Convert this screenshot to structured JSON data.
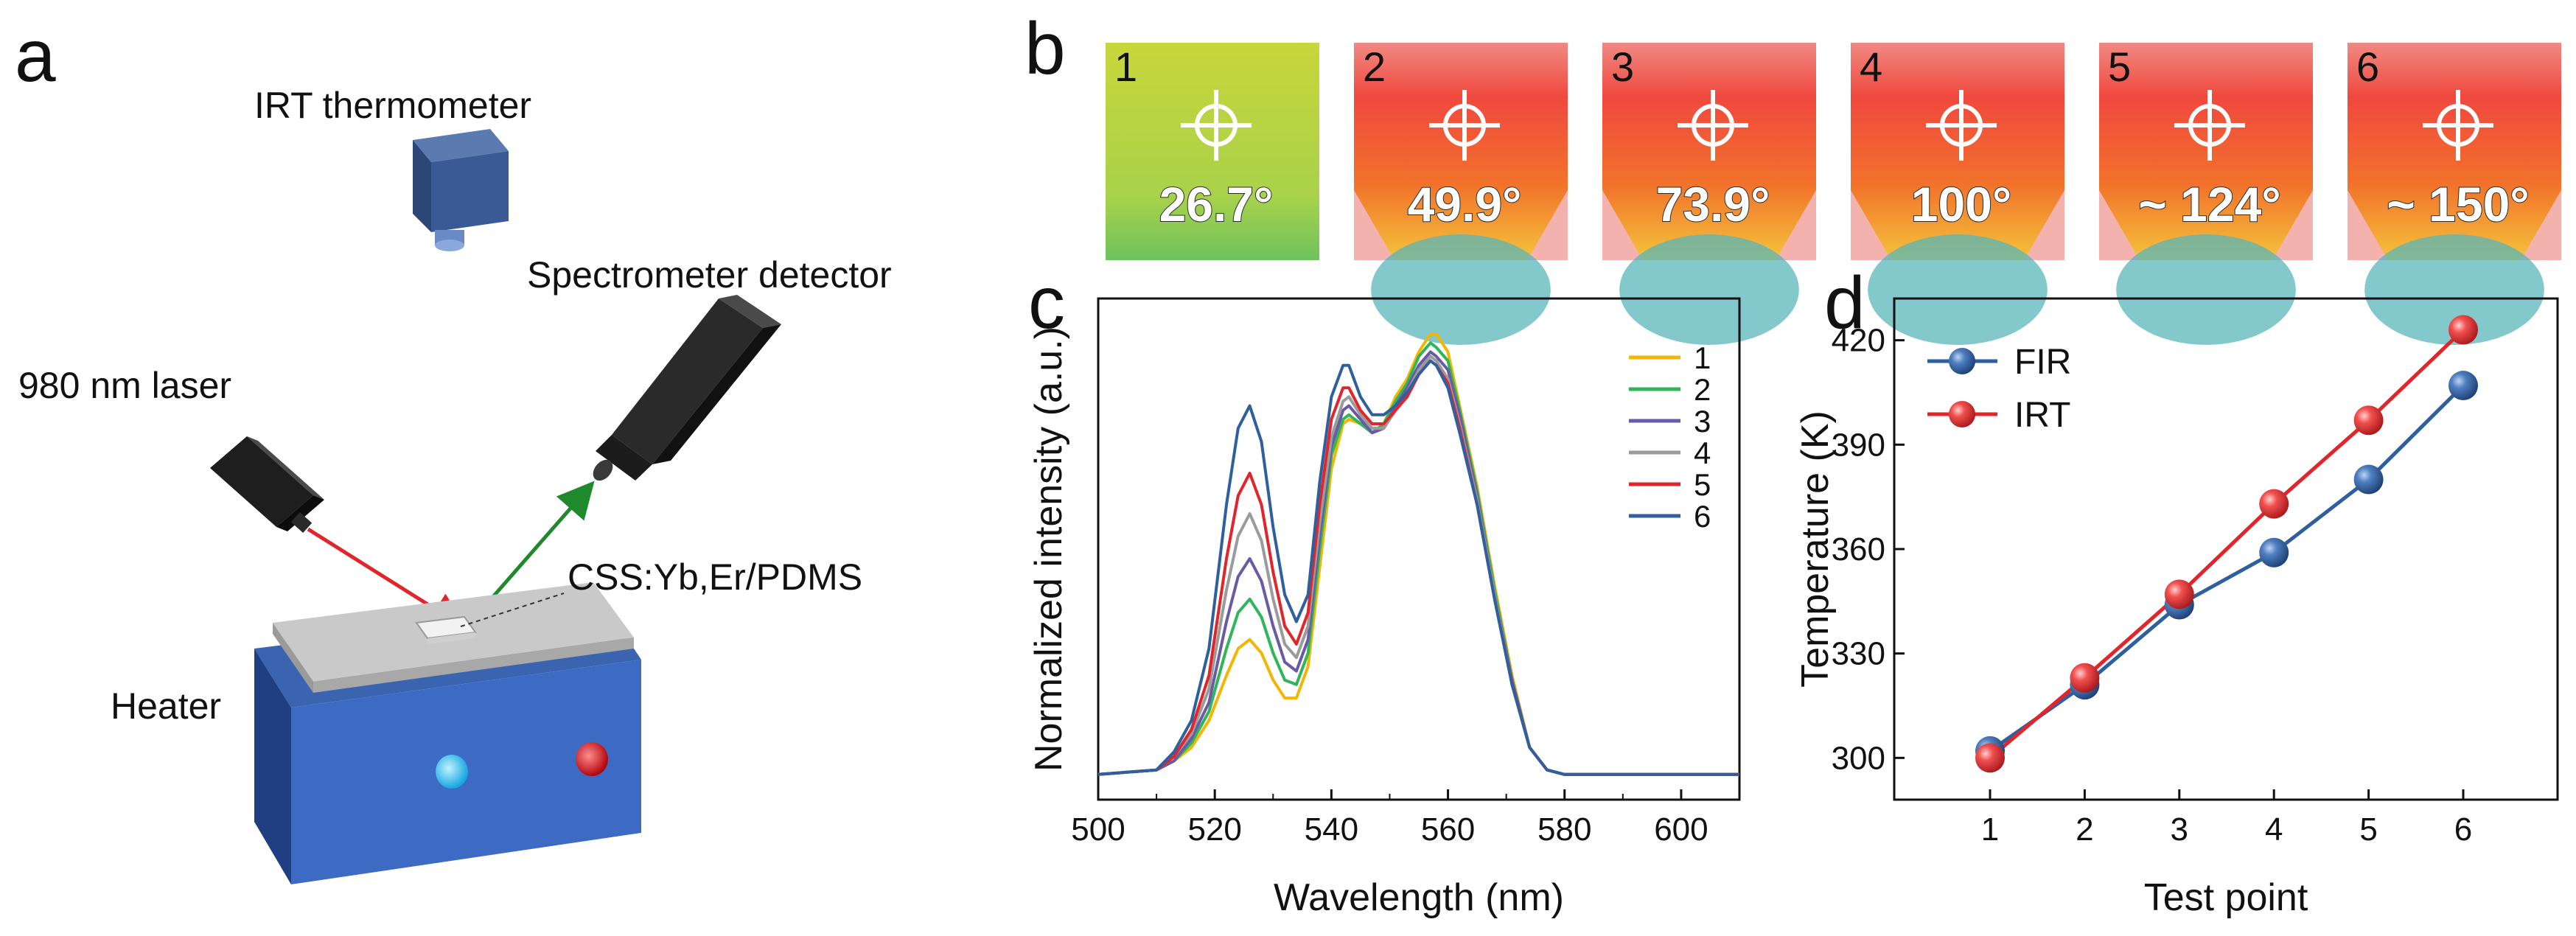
{
  "panel_a": {
    "letter": "a",
    "irt_label": "IRT thermometer",
    "spectrometer_label": "Spectrometer detector",
    "laser_label": "980 nm laser",
    "sample_label": "CSS:Yb,Er/PDMS",
    "heater_label": "Heater"
  },
  "panel_b": {
    "letter": "b",
    "images": [
      {
        "num": "1",
        "temp": "26.7°"
      },
      {
        "num": "2",
        "temp": "49.9°"
      },
      {
        "num": "3",
        "temp": "73.9°"
      },
      {
        "num": "4",
        "temp": "100°"
      },
      {
        "num": "5",
        "temp": "~ 124°"
      },
      {
        "num": "6",
        "temp": "~ 150°"
      }
    ]
  },
  "panel_c": {
    "letter": "c"
  },
  "panel_d": {
    "letter": "d"
  },
  "colors": {
    "s1": "#f2b705",
    "s2": "#2fb55a",
    "s3": "#6a5aa6",
    "s4": "#9b9b9b",
    "s5": "#e0262b",
    "s6": "#2e5f9e",
    "fir": "#2e5f9e",
    "irt": "#e0262b"
  },
  "chart_data": [
    {
      "type": "line",
      "panel": "c",
      "xlabel": "Wavelength (nm)",
      "ylabel": "Normalized intensity (a.u.)",
      "xlim": [
        500,
        610
      ],
      "xticks": [
        500,
        520,
        540,
        560,
        580,
        600
      ],
      "x": [
        500,
        510,
        513,
        516,
        519,
        522,
        524,
        526,
        528,
        530,
        532,
        534,
        536,
        538,
        540,
        542,
        543,
        545,
        547,
        549,
        551,
        553,
        555,
        557,
        558,
        560,
        562,
        565,
        568,
        571,
        574,
        577,
        580,
        590,
        600,
        610
      ],
      "series": [
        {
          "name": "1",
          "values": [
            0.02,
            0.03,
            0.05,
            0.08,
            0.14,
            0.24,
            0.3,
            0.32,
            0.29,
            0.23,
            0.19,
            0.19,
            0.26,
            0.48,
            0.7,
            0.8,
            0.81,
            0.8,
            0.78,
            0.8,
            0.86,
            0.9,
            0.96,
            1.0,
            1.0,
            0.96,
            0.84,
            0.66,
            0.44,
            0.24,
            0.08,
            0.03,
            0.02,
            0.02,
            0.02,
            0.02
          ]
        },
        {
          "name": "2",
          "values": [
            0.02,
            0.03,
            0.05,
            0.09,
            0.16,
            0.3,
            0.38,
            0.41,
            0.37,
            0.29,
            0.23,
            0.22,
            0.29,
            0.52,
            0.73,
            0.81,
            0.82,
            0.8,
            0.78,
            0.8,
            0.85,
            0.89,
            0.95,
            0.98,
            0.97,
            0.94,
            0.83,
            0.65,
            0.43,
            0.23,
            0.08,
            0.03,
            0.02,
            0.02,
            0.02,
            0.02
          ]
        },
        {
          "name": "3",
          "values": [
            0.02,
            0.03,
            0.05,
            0.1,
            0.18,
            0.36,
            0.46,
            0.5,
            0.45,
            0.35,
            0.27,
            0.25,
            0.32,
            0.55,
            0.75,
            0.83,
            0.84,
            0.81,
            0.78,
            0.79,
            0.84,
            0.88,
            0.93,
            0.96,
            0.95,
            0.92,
            0.82,
            0.64,
            0.42,
            0.23,
            0.08,
            0.03,
            0.02,
            0.02,
            0.02,
            0.02
          ]
        },
        {
          "name": "4",
          "values": [
            0.02,
            0.03,
            0.06,
            0.11,
            0.21,
            0.43,
            0.55,
            0.6,
            0.54,
            0.41,
            0.31,
            0.28,
            0.35,
            0.58,
            0.77,
            0.85,
            0.86,
            0.82,
            0.79,
            0.79,
            0.83,
            0.87,
            0.92,
            0.95,
            0.94,
            0.9,
            0.8,
            0.63,
            0.42,
            0.22,
            0.08,
            0.03,
            0.02,
            0.02,
            0.02,
            0.02
          ]
        },
        {
          "name": "5",
          "values": [
            0.02,
            0.03,
            0.06,
            0.12,
            0.24,
            0.5,
            0.64,
            0.69,
            0.62,
            0.47,
            0.35,
            0.31,
            0.38,
            0.62,
            0.81,
            0.88,
            0.88,
            0.83,
            0.8,
            0.8,
            0.83,
            0.86,
            0.91,
            0.94,
            0.93,
            0.89,
            0.79,
            0.62,
            0.41,
            0.22,
            0.08,
            0.03,
            0.02,
            0.02,
            0.02,
            0.02
          ]
        },
        {
          "name": "6",
          "values": [
            0.02,
            0.03,
            0.07,
            0.14,
            0.3,
            0.62,
            0.79,
            0.84,
            0.76,
            0.57,
            0.42,
            0.36,
            0.42,
            0.67,
            0.86,
            0.93,
            0.93,
            0.86,
            0.82,
            0.82,
            0.84,
            0.87,
            0.91,
            0.94,
            0.93,
            0.88,
            0.78,
            0.62,
            0.41,
            0.22,
            0.08,
            0.03,
            0.02,
            0.02,
            0.02,
            0.02
          ]
        }
      ],
      "legend_position": "top-right"
    },
    {
      "type": "line",
      "panel": "d",
      "xlabel": "Test point",
      "ylabel": "Temperature (K)",
      "categories": [
        "1",
        "2",
        "3",
        "4",
        "5",
        "6"
      ],
      "ylim": [
        288,
        432
      ],
      "yticks": [
        300,
        330,
        360,
        390,
        420
      ],
      "series": [
        {
          "name": "FIR",
          "values": [
            302,
            321,
            344,
            359,
            380,
            407
          ]
        },
        {
          "name": "IRT",
          "values": [
            300,
            323,
            347,
            373,
            397,
            423
          ]
        }
      ],
      "legend_position": "top-left"
    }
  ]
}
